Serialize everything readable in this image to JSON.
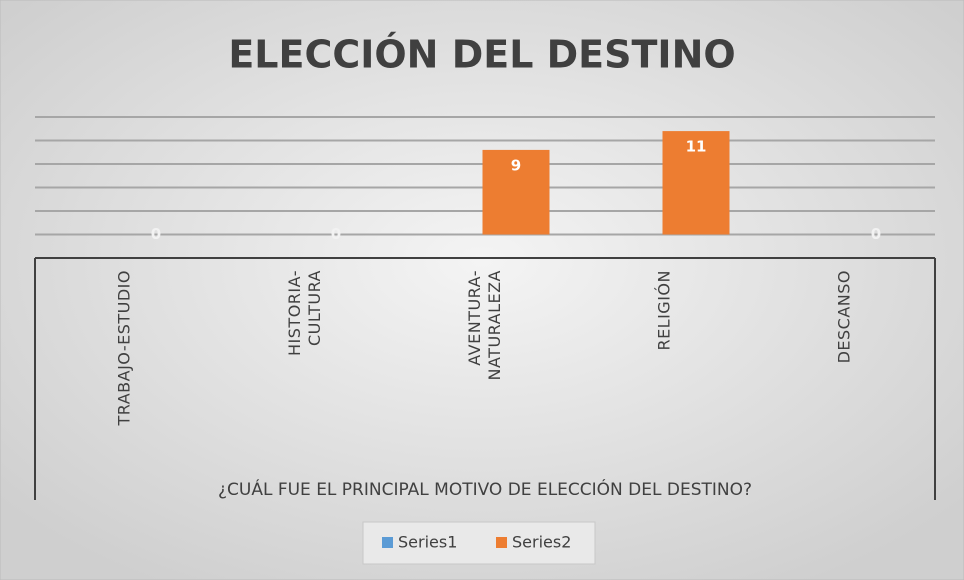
{
  "chart_data": {
    "type": "bar",
    "title": "ELECCIÓN DEL DESTINO",
    "x_label": "¿CUÁL FUE EL PRINCIPAL MOTIVO DE ELECCIÓN DEL DESTINO?",
    "categories": [
      "TRABAJO-ESTUDIO",
      "HISTORIA-CULTURA",
      "AVENTURA-NATURALEZA",
      "RELIGIÓN",
      "DESCANSO"
    ],
    "series": [
      {
        "name": "Series1",
        "color": "#5b9bd5",
        "values": [
          null,
          null,
          null,
          null,
          null
        ]
      },
      {
        "name": "Series2",
        "color": "#ed7d31",
        "values": [
          0,
          0,
          9,
          11,
          0
        ]
      }
    ],
    "ylim": [
      -2.5,
      12.5
    ],
    "yticks": [
      0,
      2.5,
      5,
      7.5,
      10,
      12.5
    ],
    "grid": true,
    "legend": "bottom"
  }
}
